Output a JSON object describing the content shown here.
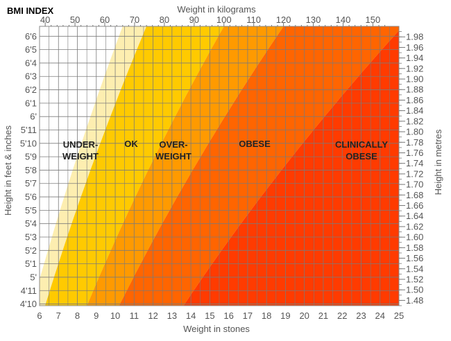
{
  "chart_data": {
    "type": "area",
    "title": "BMI INDEX",
    "x_top_label": "Weight in kilograms",
    "x_top_ticks": [
      "40",
      "50",
      "60",
      "70",
      "80",
      "90",
      "100",
      "110",
      "120",
      "130",
      "140",
      "150"
    ],
    "x_bottom_label": "Weight in stones",
    "x_bottom_ticks": [
      "6",
      "7",
      "8",
      "9",
      "10",
      "11",
      "12",
      "13",
      "14",
      "15",
      "16",
      "17",
      "18",
      "19",
      "20",
      "21",
      "22",
      "23",
      "24",
      "25"
    ],
    "y_left_label": "Height in feet & inches",
    "y_left_ticks": [
      "4'10",
      "4'11",
      "5'",
      "5'1",
      "5'2",
      "5'3",
      "5'4",
      "5'5",
      "5'6",
      "5'7",
      "5'8",
      "5'9",
      "5'10",
      "5'11",
      "6'",
      "6'1",
      "6'2",
      "6'3",
      "6'4",
      "6'5",
      "6'6"
    ],
    "y_right_label": "Height in metres",
    "y_right_ticks": [
      "1.48",
      "1.50",
      "1.52",
      "1.54",
      "1.56",
      "1.58",
      "1.60",
      "1.62",
      "1.64",
      "1.66",
      "1.68",
      "1.70",
      "1.72",
      "1.74",
      "1.76",
      "1.78",
      "1.80",
      "1.82",
      "1.84",
      "1.86",
      "1.88",
      "1.90",
      "1.92",
      "1.94",
      "1.96",
      "1.98"
    ],
    "xlim_stones": [
      6,
      25
    ],
    "ylim_metres": [
      1.47,
      2.0
    ],
    "grid": true,
    "zones": [
      {
        "name": "UNDER- WEIGHT",
        "line1": "UNDER-",
        "line2": "WEIGHT",
        "color": "#fff8d8"
      },
      {
        "name": "OK",
        "line1": "OK",
        "line2": "",
        "color": "#ffca00"
      },
      {
        "name": "OVER- WEIGHT",
        "line1": "OVER-",
        "line2": "WEIGHT",
        "color": "#ff9a00"
      },
      {
        "name": "OBESE",
        "line1": "OBESE",
        "line2": "",
        "color": "#ff6500"
      },
      {
        "name": "CLINICALLY OBESE",
        "line1": "CLINICALLY",
        "line2": "OBESE",
        "color": "#ff3b00"
      }
    ]
  }
}
